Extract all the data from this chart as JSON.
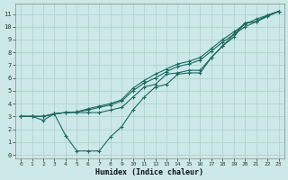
{
  "xlabel": "Humidex (Indice chaleur)",
  "xlim": [
    -0.5,
    23.5
  ],
  "ylim": [
    -0.3,
    11.8
  ],
  "xticks": [
    0,
    1,
    2,
    3,
    4,
    5,
    6,
    7,
    8,
    9,
    10,
    11,
    12,
    13,
    14,
    15,
    16,
    17,
    18,
    19,
    20,
    21,
    22,
    23
  ],
  "yticks": [
    0,
    1,
    2,
    3,
    4,
    5,
    6,
    7,
    8,
    9,
    10,
    11
  ],
  "bg_color": "#cce8e8",
  "grid_color": "#aad0cc",
  "line_color": "#1a6b60",
  "lines": [
    {
      "x": [
        0,
        1,
        2,
        3,
        4,
        5,
        6,
        7,
        8,
        9,
        10,
        11,
        12,
        13,
        14,
        15,
        16,
        17,
        18,
        19,
        20,
        21,
        22,
        23
      ],
      "y": [
        3.0,
        3.0,
        2.7,
        3.2,
        1.5,
        0.3,
        0.3,
        0.3,
        1.4,
        2.2,
        3.5,
        4.5,
        5.3,
        5.5,
        6.3,
        6.4,
        6.4,
        7.6,
        8.5,
        9.4,
        10.3,
        10.4,
        10.9,
        11.2
      ]
    },
    {
      "x": [
        0,
        1,
        2,
        3,
        4,
        5,
        6,
        7,
        8,
        9,
        10,
        11,
        12,
        13,
        14,
        15,
        16,
        17,
        18,
        19,
        20,
        21,
        22,
        23
      ],
      "y": [
        3.0,
        3.0,
        3.0,
        3.2,
        3.3,
        3.3,
        3.3,
        3.3,
        3.5,
        3.7,
        4.5,
        5.3,
        5.5,
        6.3,
        6.4,
        6.6,
        6.6,
        7.6,
        8.5,
        9.2,
        10.3,
        10.4,
        10.9,
        11.2
      ]
    },
    {
      "x": [
        0,
        1,
        2,
        3,
        4,
        5,
        6,
        7,
        8,
        9,
        10,
        11,
        12,
        13,
        14,
        15,
        16,
        17,
        18,
        19,
        20,
        21,
        22,
        23
      ],
      "y": [
        3.0,
        3.0,
        3.0,
        3.2,
        3.3,
        3.35,
        3.5,
        3.7,
        3.9,
        4.2,
        5.0,
        5.6,
        6.0,
        6.5,
        6.9,
        7.1,
        7.4,
        8.1,
        8.8,
        9.4,
        10.0,
        10.4,
        10.8,
        11.2
      ]
    },
    {
      "x": [
        0,
        1,
        2,
        3,
        4,
        5,
        6,
        7,
        8,
        9,
        10,
        11,
        12,
        13,
        14,
        15,
        16,
        17,
        18,
        19,
        20,
        21,
        22,
        23
      ],
      "y": [
        3.0,
        3.0,
        3.0,
        3.2,
        3.3,
        3.35,
        3.6,
        3.8,
        4.0,
        4.3,
        5.2,
        5.8,
        6.3,
        6.7,
        7.1,
        7.3,
        7.6,
        8.3,
        9.0,
        9.6,
        10.2,
        10.6,
        10.9,
        11.2
      ]
    }
  ]
}
